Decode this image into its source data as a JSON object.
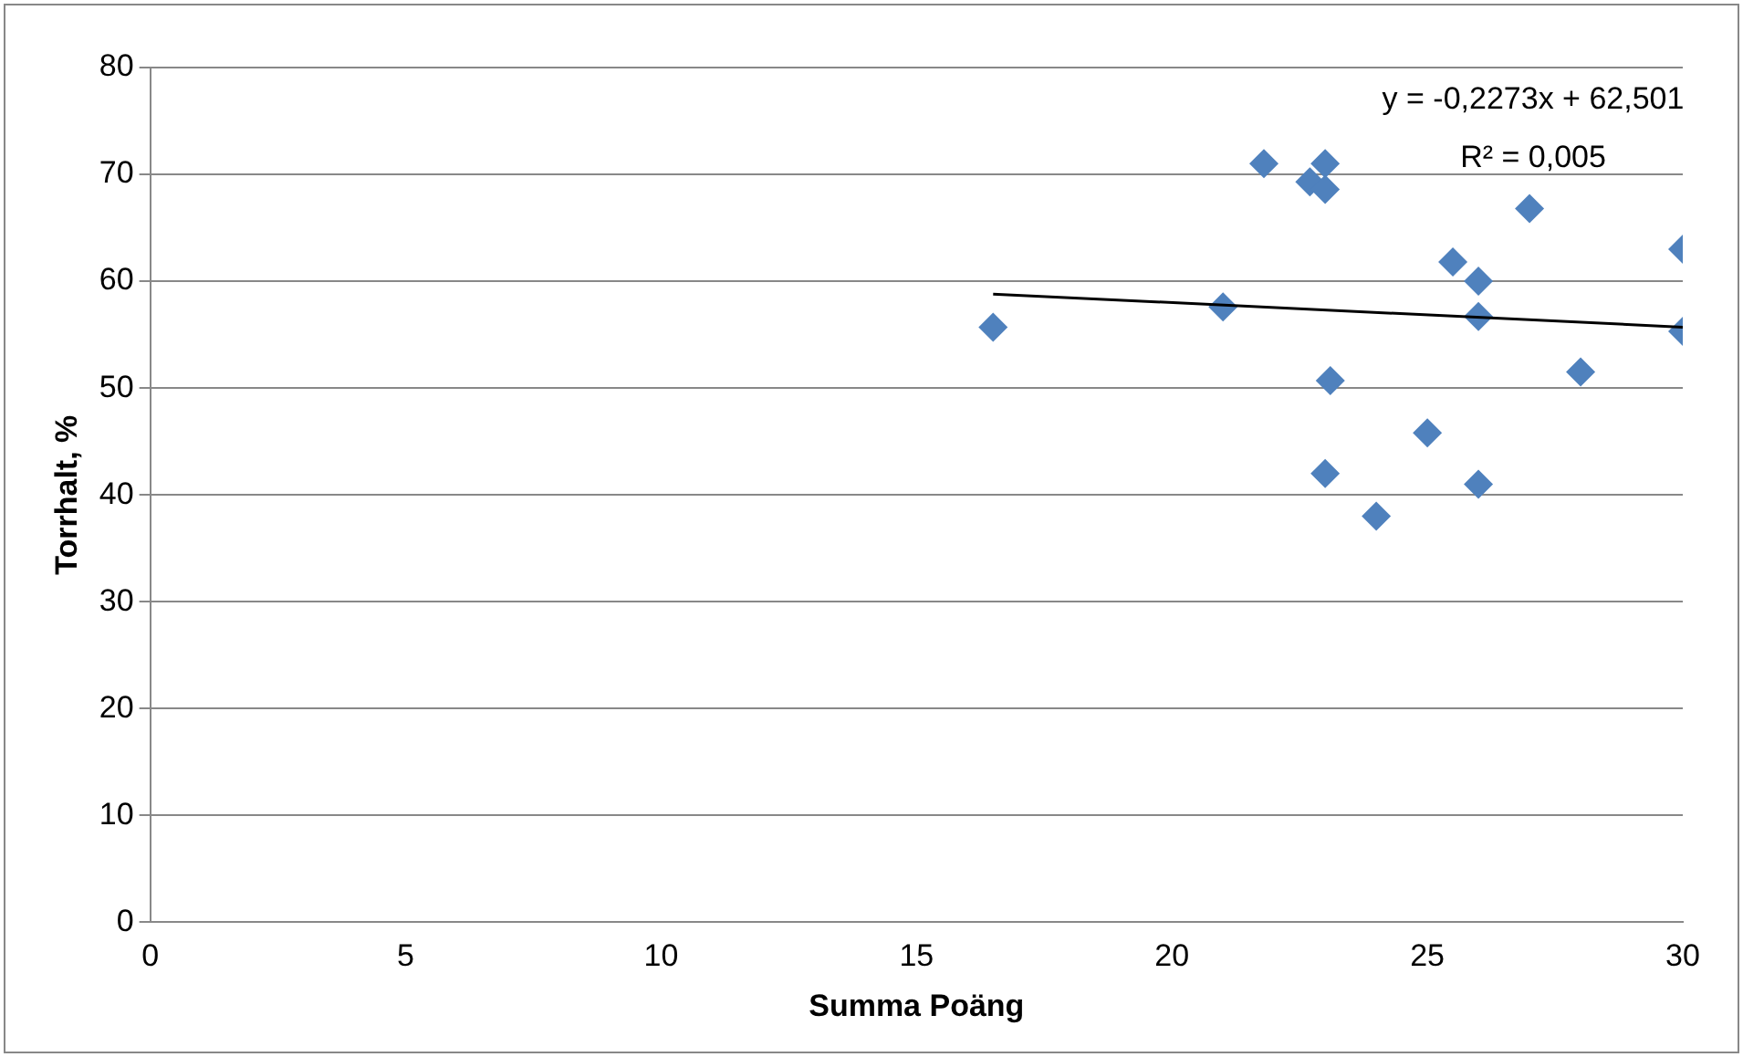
{
  "chart_data": {
    "type": "scatter",
    "xlabel": "Summa Poäng",
    "ylabel": "Torrhalt, %",
    "xlim": [
      0,
      30
    ],
    "xticks": [
      0,
      5,
      10,
      15,
      20,
      25,
      30
    ],
    "ylim": [
      0,
      80
    ],
    "yticks": [
      0,
      10,
      20,
      30,
      40,
      50,
      60,
      70,
      80
    ],
    "grid": "y",
    "legend": false,
    "marker": "diamond",
    "annotations": [
      "y = -0,2273x + 62,501",
      "R² = 0,005"
    ],
    "series": [
      {
        "type": "scatter",
        "color": "#4f81bd",
        "x": [
          16.5,
          21,
          21.8,
          22.7,
          23,
          23,
          23.1,
          23,
          24,
          25,
          25.5,
          26,
          26,
          26,
          27,
          28,
          30,
          30
        ],
        "values": [
          55.7,
          57.6,
          71,
          69.3,
          71,
          68.6,
          50.7,
          42,
          38,
          45.8,
          61.8,
          60,
          56.7,
          41,
          66.8,
          51.5,
          63,
          55.3
        ]
      },
      {
        "type": "line",
        "color": "#000000",
        "marker": "none",
        "x": [
          16.5,
          30
        ],
        "values": [
          58.8,
          55.7
        ]
      }
    ]
  }
}
